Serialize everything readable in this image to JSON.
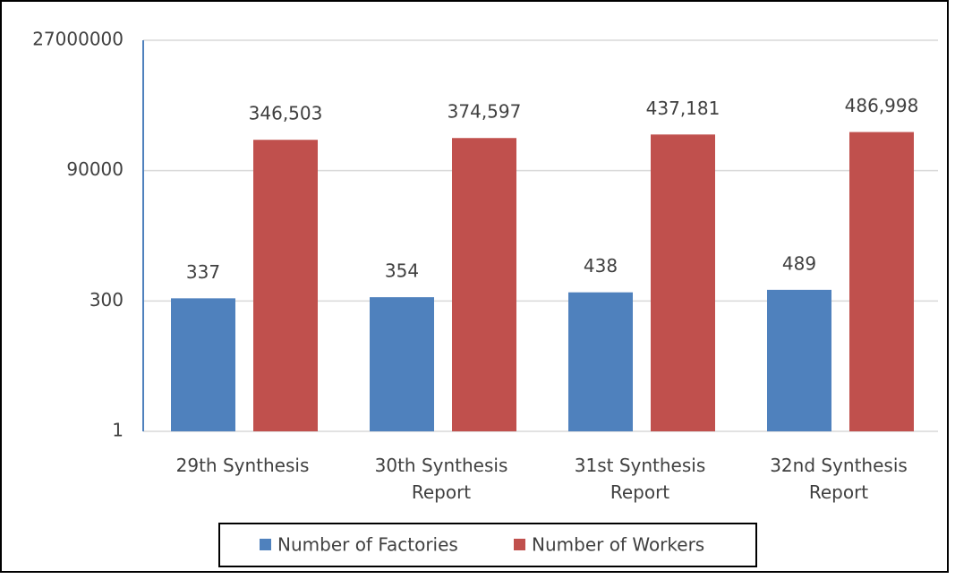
{
  "chart_data": {
    "type": "bar",
    "categories": [
      "29th Synthesis",
      "30th Synthesis Report",
      "31st Synthesis Report",
      "32nd Synthesis Report"
    ],
    "series": [
      {
        "name": "Number of Factories",
        "color": "#4f81bd",
        "values": [
          337,
          354,
          438,
          489
        ]
      },
      {
        "name": "Number of Workers",
        "color": "#c0504d",
        "values": [
          346503,
          374597,
          437181,
          486998
        ],
        "value_labels": [
          "346,503",
          "374,597",
          "437,181",
          "486,998"
        ]
      }
    ],
    "ylim": [
      1,
      27000000
    ],
    "yticks": [
      1,
      300,
      90000,
      27000000
    ],
    "log_scale": true,
    "grid": true,
    "legend": "bottom"
  }
}
